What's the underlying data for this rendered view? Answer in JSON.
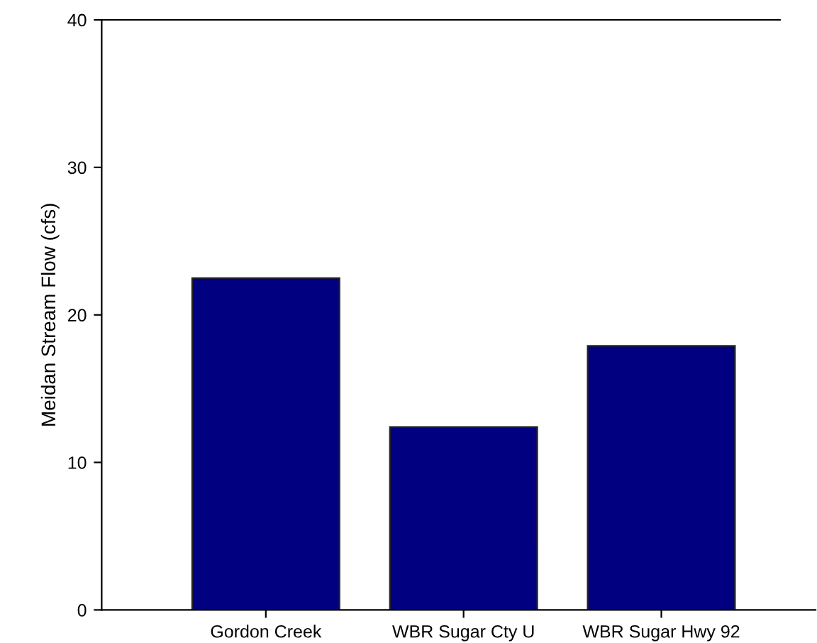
{
  "chart_data": {
    "type": "bar",
    "ylabel": "Meidan Stream Flow (cfs)",
    "categories": [
      "Gordon Creek",
      "WBR Sugar Cty U",
      "WBR Sugar Hwy 92"
    ],
    "values": [
      22.5,
      12.4,
      17.9
    ],
    "color": "#000080",
    "ylim": [
      0,
      40
    ],
    "yticks": [
      0,
      10,
      20,
      30,
      40
    ],
    "grid": false,
    "legend": false
  }
}
